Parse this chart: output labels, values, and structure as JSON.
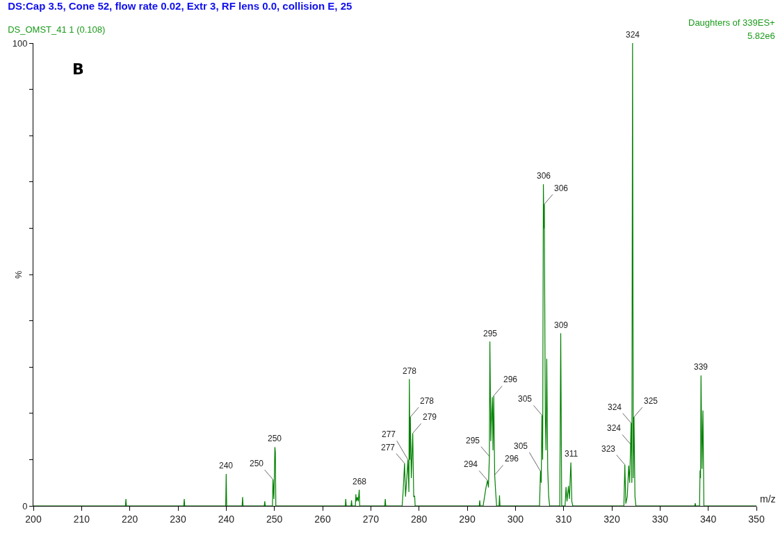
{
  "chart_data": {
    "type": "line",
    "title": "DS:Cap 3.5, Cone 52, flow rate 0.02, Extr 3, RF lens 0.0, collision E, 25",
    "subtitle": "DS_OMST_41 1 (0.108)",
    "xlabel": "m/z",
    "ylabel": "%",
    "xlim": [
      200,
      350
    ],
    "xticks": [
      200,
      210,
      220,
      230,
      240,
      250,
      260,
      270,
      280,
      290,
      300,
      310,
      320,
      330,
      340,
      350
    ],
    "ylim": [
      0,
      100
    ],
    "yticks": [
      0,
      {
        "value": 10,
        "label": null
      },
      {
        "value": 20,
        "label": null
      },
      {
        "value": 30,
        "label": null
      },
      {
        "value": 40,
        "label": null
      },
      {
        "value": 50,
        "label": null
      },
      {
        "value": 60,
        "label": null
      },
      {
        "value": 70,
        "label": null
      },
      {
        "value": 80,
        "label": null
      },
      {
        "value": 90,
        "label": null
      },
      100
    ],
    "marker": "none",
    "line_style": "solid",
    "series": [
      {
        "color": "#008000",
        "x": [
          200,
          219.1,
          219.2,
          219.3,
          231.2,
          231.3,
          231.4,
          239.9,
          240.0,
          240.1,
          243.3,
          243.4,
          243.5,
          247.9,
          248.0,
          248.1,
          249.6,
          249.7,
          249.9,
          250.1,
          250.2,
          250.3,
          264.7,
          264.8,
          264.9,
          265.9,
          266.0,
          266.1,
          266.8,
          266.9,
          267.0,
          267.2,
          267.4,
          267.6,
          267.7,
          272.9,
          273.0,
          273.1,
          276.5,
          276.7,
          277.0,
          277.2,
          277.4,
          277.7,
          277.9,
          278.0,
          278.1,
          278.2,
          278.4,
          278.7,
          278.9,
          279.1,
          279.2,
          292.5,
          292.6,
          292.7,
          293.3,
          293.6,
          293.9,
          294.2,
          294.4,
          294.6,
          294.7,
          294.9,
          295.0,
          295.2,
          295.35,
          295.5,
          295.7,
          295.9,
          296.1,
          296.6,
          296.7,
          296.8,
          305.0,
          305.2,
          305.35,
          305.5,
          305.65,
          305.8,
          305.9,
          306.0,
          306.05,
          306.2,
          306.35,
          306.5,
          306.7,
          306.9,
          307.1,
          309.2,
          309.4,
          309.6,
          310.3,
          310.5,
          310.7,
          311.0,
          311.2,
          311.5,
          311.7,
          311.9,
          322.5,
          322.7,
          322.9,
          323.2,
          323.5,
          323.7,
          323.9,
          324.0,
          324.15,
          324.3,
          324.45,
          324.6,
          324.8,
          325.0,
          337.2,
          337.3,
          337.4,
          338.2,
          338.3,
          338.4,
          338.5,
          338.7,
          338.9,
          339.1,
          350
        ],
        "values": [
          0,
          0,
          1.5,
          0,
          0,
          1.5,
          0,
          0,
          6.9,
          0,
          0,
          1.9,
          0,
          0,
          1.0,
          0,
          0,
          5.7,
          1.5,
          12.7,
          11.6,
          0,
          0,
          1.5,
          0,
          0,
          1.2,
          0,
          0,
          2.5,
          1.0,
          1.9,
          1.0,
          3.5,
          0,
          0,
          1.5,
          0,
          0,
          3,
          9.2,
          2,
          5,
          10.0,
          3,
          27.4,
          10,
          19.2,
          6,
          15.7,
          2,
          2.1,
          0,
          0,
          1.2,
          0,
          0,
          2,
          4,
          5.5,
          4,
          10.7,
          35.5,
          14,
          18,
          23.5,
          12,
          23.8,
          6.7,
          3,
          0,
          0,
          2.3,
          0,
          0,
          7.5,
          5,
          19.6,
          10,
          69.5,
          60,
          65.2,
          51.1,
          20,
          12,
          31.8,
          8,
          2,
          0,
          0,
          37.3,
          0,
          0,
          4.1,
          1,
          4.3,
          1.5,
          9.4,
          1,
          0,
          0,
          8.9,
          0.5,
          2,
          8.7,
          5,
          13.3,
          17.9,
          5,
          100,
          6,
          19.2,
          2,
          0,
          0,
          0.6,
          0,
          0,
          7.7,
          6,
          28.2,
          8,
          20.6,
          0,
          0
        ]
      }
    ],
    "annotations": [
      "B",
      "Daughters of 339ES+",
      "5.82e6",
      {
        "text": "240",
        "x": 240.0,
        "y": 6.9
      },
      {
        "text": "250",
        "x": 249.7,
        "y": 5.7
      },
      {
        "text": "250",
        "x": 250.1,
        "y": 12.7
      },
      {
        "text": "268",
        "x": 267.6,
        "y": 3.5
      },
      {
        "text": "277",
        "x": 277.0,
        "y": 9.2
      },
      {
        "text": "277",
        "x": 277.7,
        "y": 10.0
      },
      {
        "text": "278",
        "x": 278.0,
        "y": 27.4
      },
      {
        "text": "278",
        "x": 278.2,
        "y": 19.2
      },
      {
        "text": "279",
        "x": 278.7,
        "y": 15.7
      },
      {
        "text": "294",
        "x": 294.2,
        "y": 5.5
      },
      {
        "text": "295",
        "x": 294.6,
        "y": 10.7
      },
      {
        "text": "295",
        "x": 294.7,
        "y": 35.5
      },
      {
        "text": "296",
        "x": 295.5,
        "y": 23.8
      },
      {
        "text": "296",
        "x": 295.7,
        "y": 6.7
      },
      {
        "text": "305",
        "x": 305.2,
        "y": 7.5
      },
      {
        "text": "305",
        "x": 305.5,
        "y": 19.6
      },
      {
        "text": "306",
        "x": 305.8,
        "y": 69.5
      },
      {
        "text": "306",
        "x": 306.0,
        "y": 65.2
      },
      {
        "text": "309",
        "x": 309.4,
        "y": 37.3
      },
      {
        "text": "311",
        "x": 311.5,
        "y": 9.4
      },
      {
        "text": "323",
        "x": 322.7,
        "y": 8.9
      },
      {
        "text": "324",
        "x": 323.9,
        "y": 13.3
      },
      {
        "text": "324",
        "x": 324.0,
        "y": 17.9
      },
      {
        "text": "324",
        "x": 324.3,
        "y": 100
      },
      {
        "text": "325",
        "x": 324.6,
        "y": 19.2
      },
      {
        "text": "339",
        "x": 338.5,
        "y": 28.2
      }
    ]
  }
}
